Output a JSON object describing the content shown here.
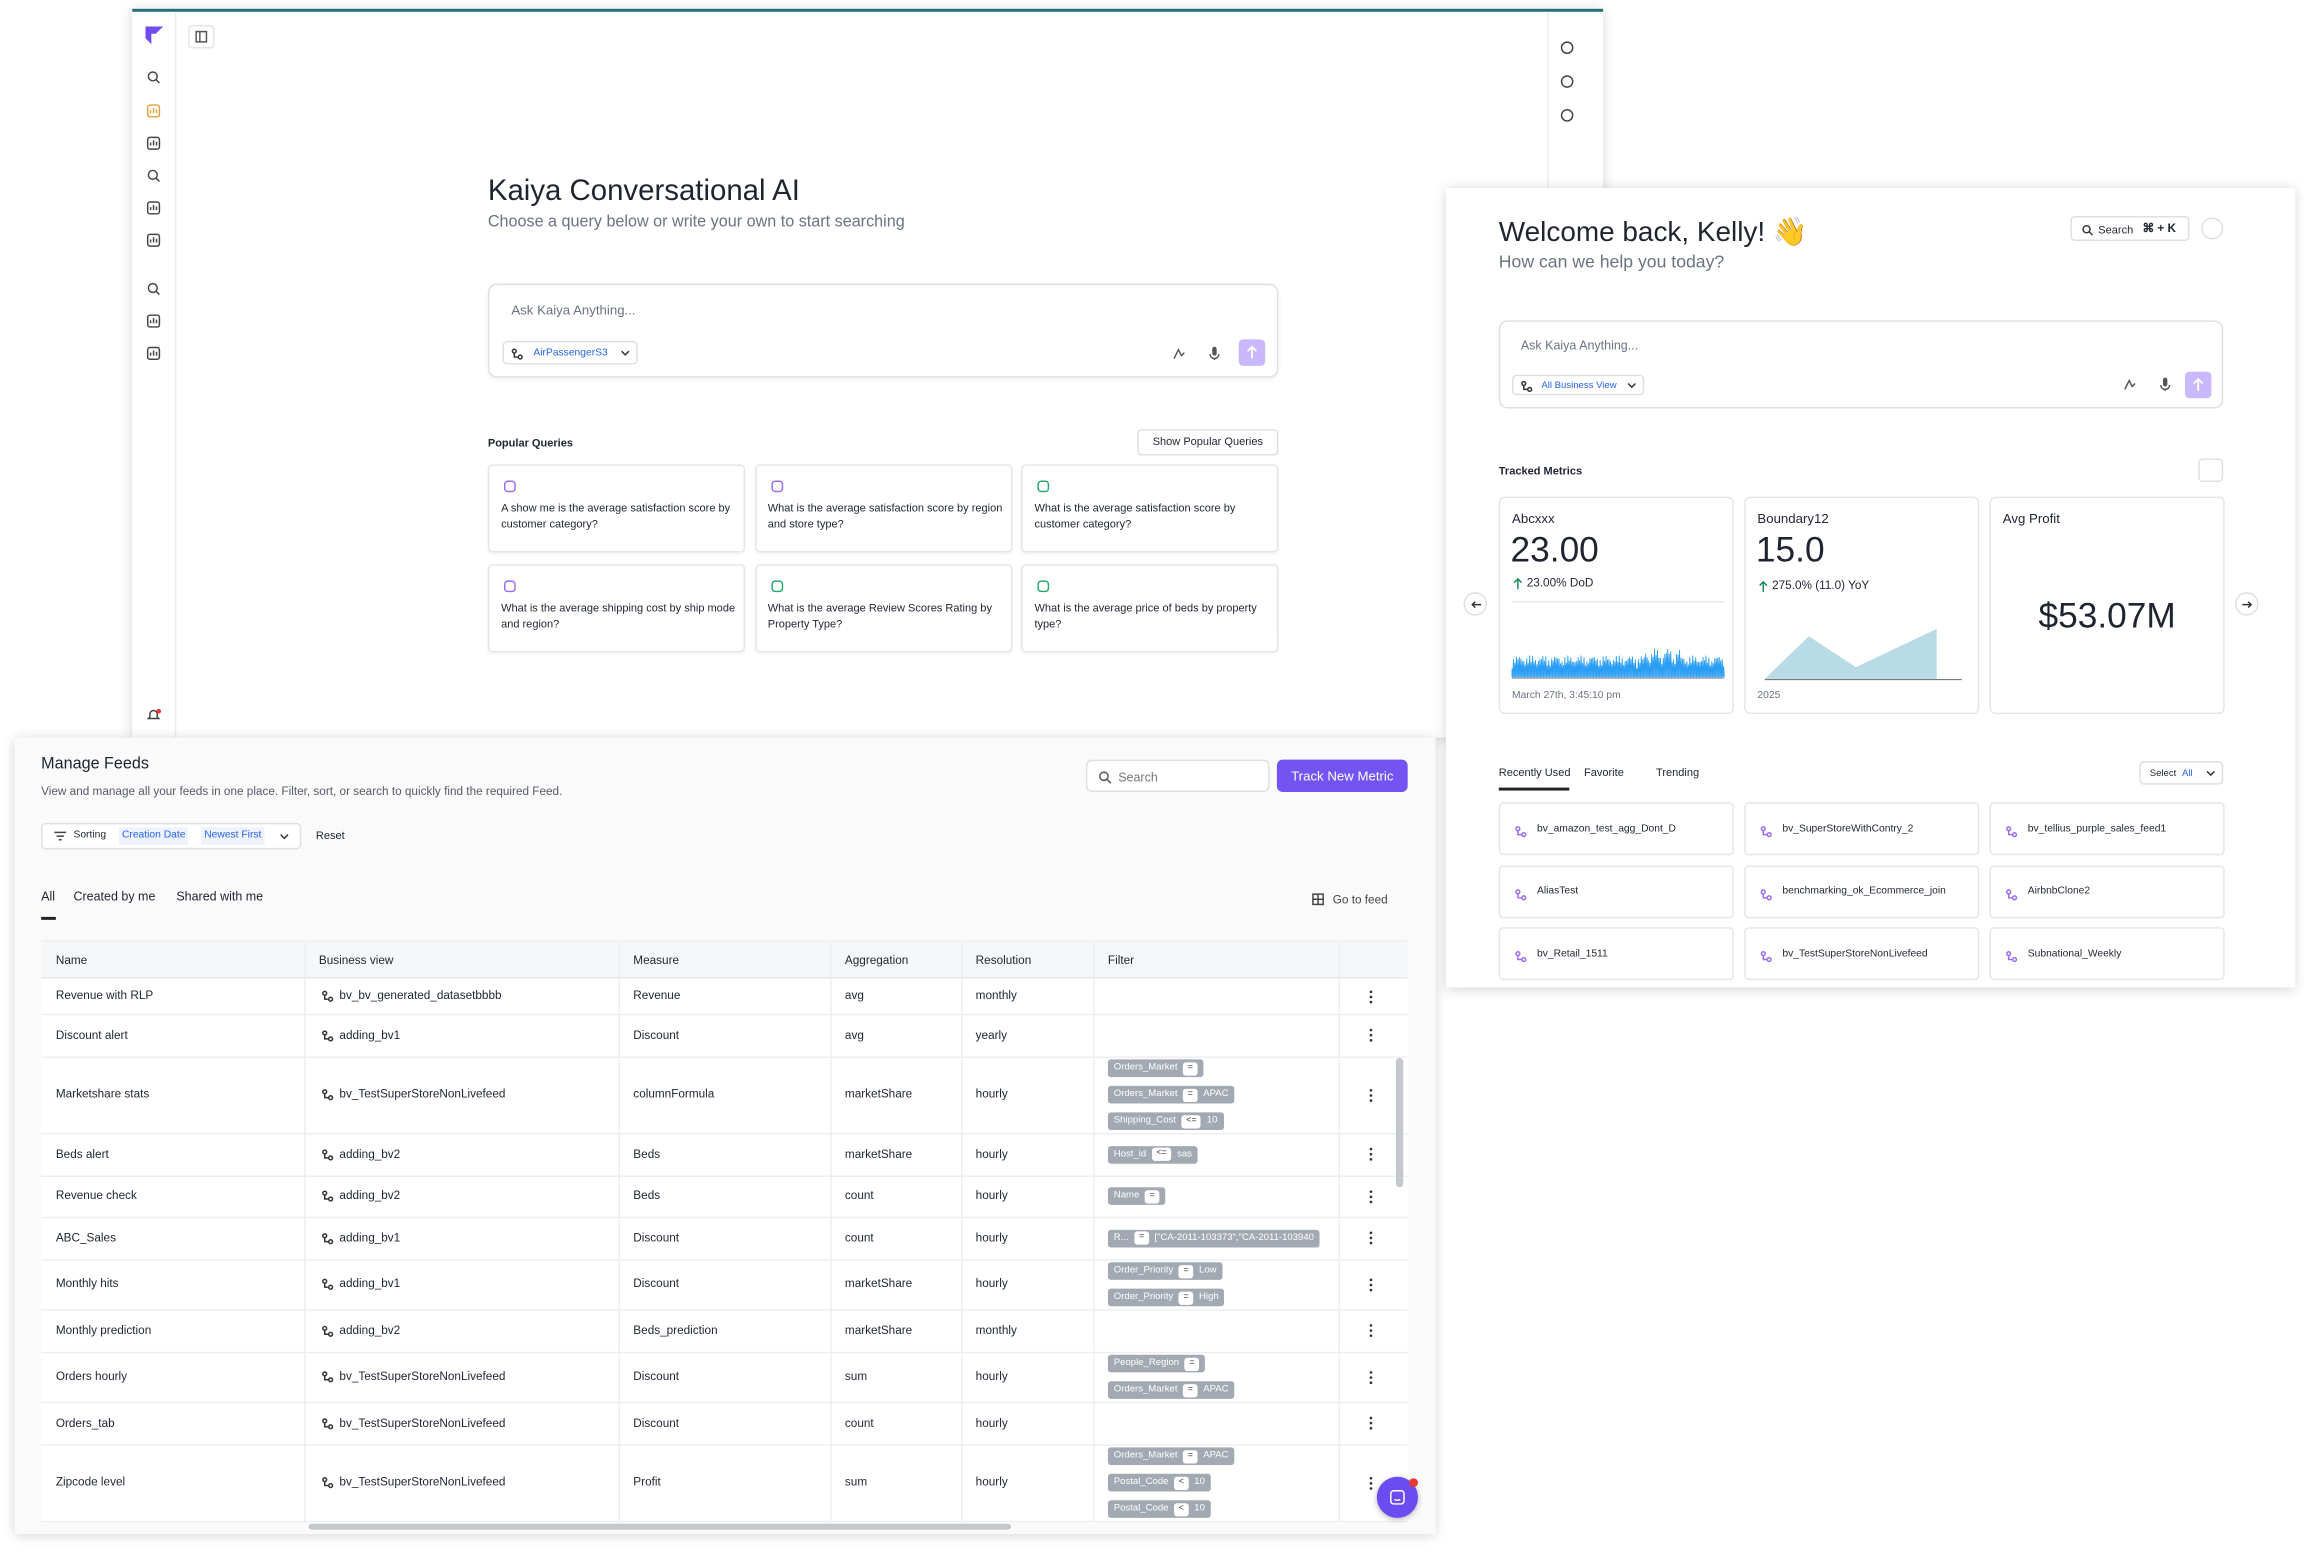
{
  "kaiya": {
    "title": "Kaiya Conversational AI",
    "subtitle": "Choose a query below or write your own to start searching",
    "input_placeholder": "Ask Kaiya Anything...",
    "business_view": "AirPassengerS3",
    "popular_title": "Popular Queries",
    "show_popular": "Show Popular Queries",
    "queries": [
      "A show me is the average satisfaction score by customer category?",
      "What is the average satisfaction score by region and store type?",
      "What is the average satisfaction score by customer category?",
      "What is the average shipping cost by ship mode and region?",
      "What is the average Review Scores Rating by Property Type?",
      "What is the average price of beds by property type?"
    ]
  },
  "welcome": {
    "title": "Welcome back, Kelly! 👋",
    "subtitle": "How can we help you today?",
    "search": "Search",
    "shortcut": "⌘ + K",
    "input_placeholder": "Ask Kaiya Anything...",
    "business_view": "All Business View",
    "tracked_title": "Tracked Metrics",
    "metrics": [
      {
        "name": "Abcxxx",
        "value": "23.00",
        "change": "23.00% DoD",
        "footer": "March 27th, 3:45:10 pm"
      },
      {
        "name": "Boundary12",
        "value": "15.0",
        "change": "275.0% (11.0) YoY",
        "footer": "2025"
      },
      {
        "name": "Avg Profit",
        "value": "$53.07M"
      }
    ],
    "tabs": [
      "Recently Used",
      "Favorite",
      "Trending"
    ],
    "select_label": "Select",
    "select_value": "All",
    "recent": [
      "bv_amazon_test_agg_Dont_D",
      "bv_SuperStoreWithContry_2",
      "bv_tellius_purple_sales_feed1",
      "AliasTest",
      "benchmarking_ok_Ecommerce_join",
      "AirbnbClone2",
      "bv_Retail_1511",
      "bv_TestSuperStoreNonLivefeed",
      "Subnational_Weekly"
    ]
  },
  "feeds": {
    "title": "Manage Feeds",
    "description": "View and manage all your feeds in one place. Filter, sort, or search to quickly find the required Feed.",
    "search_placeholder": "Search",
    "track_button": "Track New Metric",
    "sorting_label": "Sorting",
    "sort_field": "Creation Date",
    "sort_order": "Newest First",
    "reset": "Reset",
    "tabs": [
      "All",
      "Created by me",
      "Shared with me"
    ],
    "go_to_feed": "Go to feed",
    "columns": [
      "Name",
      "Business view",
      "Measure",
      "Aggregation",
      "Resolution",
      "Filter"
    ],
    "rows": [
      {
        "name": "Revenue with RLP",
        "business_view": "bv_bv_generated_datasetbbbb",
        "measure": "Revenue",
        "aggregation": "avg",
        "resolution": "monthly",
        "filters": []
      },
      {
        "name": "Discount alert",
        "business_view": "adding_bv1",
        "measure": "Discount",
        "aggregation": "avg",
        "resolution": "yearly",
        "filters": []
      },
      {
        "name": "Marketshare stats",
        "business_view": "bv_TestSuperStoreNonLivefeed",
        "measure": "columnFormula",
        "aggregation": "marketShare",
        "resolution": "hourly",
        "filters": [
          {
            "field": "Orders_Market",
            "op": "="
          },
          {
            "field": "Orders_Market",
            "op": "=",
            "value": "APAC"
          },
          {
            "field": "Shipping_Cost",
            "op": "<=",
            "value": "10"
          }
        ]
      },
      {
        "name": "Beds alert",
        "business_view": "adding_bv2",
        "measure": "Beds",
        "aggregation": "marketShare",
        "resolution": "hourly",
        "filters": [
          {
            "field": "Host_id",
            "op": "<=",
            "value": "sas"
          }
        ]
      },
      {
        "name": "Revenue check",
        "business_view": "adding_bv2",
        "measure": "Beds",
        "aggregation": "count",
        "resolution": "hourly",
        "filters": [
          {
            "field": "Name",
            "op": "="
          }
        ]
      },
      {
        "name": "ABC_Sales",
        "business_view": "adding_bv1",
        "measure": "Discount",
        "aggregation": "count",
        "resolution": "hourly",
        "filters": [
          {
            "field": "R...",
            "op": "=",
            "value": "[\"CA-2011-103373\",\"CA-2011-103940"
          }
        ]
      },
      {
        "name": "Monthly hits",
        "business_view": "adding_bv1",
        "measure": "Discount",
        "aggregation": "marketShare",
        "resolution": "hourly",
        "filters": [
          {
            "field": "Order_Priority",
            "op": "=",
            "value": "Low"
          },
          {
            "field": "Order_Priority",
            "op": "=",
            "value": "High"
          }
        ]
      },
      {
        "name": "Monthly prediction",
        "business_view": "adding_bv2",
        "measure": "Beds_prediction",
        "aggregation": "marketShare",
        "resolution": "monthly",
        "filters": []
      },
      {
        "name": "Orders hourly",
        "business_view": "bv_TestSuperStoreNonLivefeed",
        "measure": "Discount",
        "aggregation": "sum",
        "resolution": "hourly",
        "filters": [
          {
            "field": "People_Region",
            "op": "="
          },
          {
            "field": "Orders_Market",
            "op": "=",
            "value": "APAC"
          }
        ]
      },
      {
        "name": "Orders_tab",
        "business_view": "bv_TestSuperStoreNonLivefeed",
        "measure": "Discount",
        "aggregation": "count",
        "resolution": "hourly",
        "filters": []
      },
      {
        "name": "Zipcode level",
        "business_view": "bv_TestSuperStoreNonLivefeed",
        "measure": "Profit",
        "aggregation": "sum",
        "resolution": "hourly",
        "filters": [
          {
            "field": "Orders_Market",
            "op": "=",
            "value": "APAC"
          },
          {
            "field": "Postal_Code",
            "op": "<",
            "value": "10"
          },
          {
            "field": "Postal_Code",
            "op": "<",
            "value": "10"
          }
        ]
      }
    ]
  }
}
